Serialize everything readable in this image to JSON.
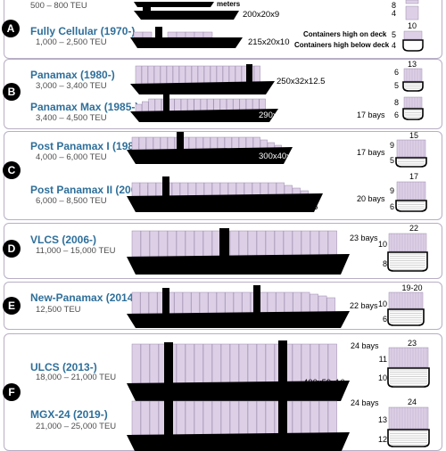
{
  "generations": [
    {
      "teu": "500 – 800 TEU",
      "units_label": "meters",
      "dims": "",
      "high": "",
      "low": "",
      "beam": ""
    },
    {
      "name": "Fully Cellular (1970-)",
      "teu": "1,000 – 2,500 TEU",
      "dims": "200x20x9",
      "dims_alt": "215x20x10",
      "high": "4",
      "low": "8",
      "high2": "5",
      "low2": "4",
      "beam": "10"
    },
    {
      "name": "Panamax (1980-)",
      "teu": "3,000 – 3,400 TEU",
      "dims": "250x32x12.5",
      "high": "6",
      "low": "5",
      "beam": "13"
    },
    {
      "name": "Panamax Max (1985-)",
      "teu": "3,400 – 4,500 TEU",
      "dims": "290x32x12.5",
      "bays": "17 bays",
      "high": "8",
      "low": "6"
    },
    {
      "name": "Post Panamax I (1988-)",
      "teu": "4,000 – 6,000 TEU",
      "dims": "300x40x13",
      "bays": "17 bays",
      "high": "9",
      "low": "5",
      "beam": "15"
    },
    {
      "name": "Post Panamax II (2000-)",
      "teu": "6,000 – 8,500 TEU",
      "dims": "340x43x14.5",
      "bays": "20 bays",
      "high": "9",
      "low": "6",
      "beam": "17"
    },
    {
      "name": "VLCS (2006-)",
      "teu": "11,000 – 15,000 TEU",
      "dims": "397x56x15.5",
      "bays": "23 bays",
      "high": "10",
      "low": "8",
      "beam": "22"
    },
    {
      "name": "New-Panamax (2014-)",
      "teu": "12,500 TEU",
      "dims": "366x49x15.2",
      "bays": "22 bays",
      "high": "10",
      "low": "6",
      "beam": "19-20"
    },
    {
      "name": "ULCS (2013-)",
      "teu": "18,000 – 21,000 TEU",
      "dims": "400x59x16",
      "bays": "24 bays",
      "high": "11",
      "low": "10",
      "beam": "23"
    },
    {
      "name": "MGX-24 (2019-)",
      "teu": "21,000 – 25,000 TEU",
      "dims": "400x61x16",
      "bays": "24 bays",
      "high": "13",
      "low": "12",
      "beam": "24"
    }
  ],
  "badges": [
    "A",
    "B",
    "C",
    "D",
    "E",
    "F"
  ],
  "legend": {
    "high_on_deck": "Containers high on deck",
    "high_below_deck": "Containers high below deck"
  },
  "colors": {
    "container": "#ddd0e6",
    "container_line": "#9c8aae",
    "hull": "#000000",
    "title": "#2e6f9a",
    "border": "#b8aec6"
  }
}
